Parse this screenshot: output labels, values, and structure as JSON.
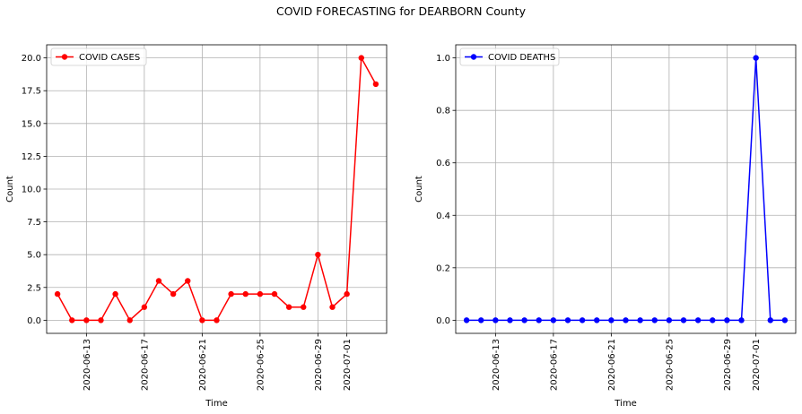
{
  "figure": {
    "suptitle": "COVID FORECASTING for DEARBORN County"
  },
  "chart_data": [
    {
      "type": "line",
      "xlabel": "Time",
      "ylabel": "Count",
      "x": [
        "2020-06-11",
        "2020-06-12",
        "2020-06-13",
        "2020-06-14",
        "2020-06-15",
        "2020-06-16",
        "2020-06-17",
        "2020-06-18",
        "2020-06-19",
        "2020-06-20",
        "2020-06-21",
        "2020-06-22",
        "2020-06-23",
        "2020-06-24",
        "2020-06-25",
        "2020-06-26",
        "2020-06-27",
        "2020-06-28",
        "2020-06-29",
        "2020-06-30",
        "2020-07-01",
        "2020-07-02",
        "2020-07-03"
      ],
      "series": [
        {
          "name": "COVID CASES",
          "color": "#ff0000",
          "marker": "circle",
          "values": [
            2,
            0,
            0,
            0,
            2,
            0,
            1,
            3,
            2,
            3,
            0,
            0,
            2,
            2,
            2,
            2,
            1,
            1,
            5,
            1,
            2,
            20,
            18
          ]
        }
      ],
      "xticks": [
        "2020-06-13",
        "2020-06-17",
        "2020-06-21",
        "2020-06-25",
        "2020-06-29",
        "2020-07-01"
      ],
      "yticks": [
        0.0,
        2.5,
        5.0,
        7.5,
        10.0,
        12.5,
        15.0,
        17.5,
        20.0
      ],
      "ytick_labels": [
        "0.0",
        "2.5",
        "5.0",
        "7.5",
        "10.0",
        "12.5",
        "15.0",
        "17.5",
        "20.0"
      ],
      "xlim": [
        "2020-06-10T06:00",
        "2020-07-03T18:00"
      ],
      "ylim": [
        -1.0,
        21.0
      ],
      "grid": true,
      "legend": "upper-left"
    },
    {
      "type": "line",
      "xlabel": "Time",
      "ylabel": "Count",
      "x": [
        "2020-06-11",
        "2020-06-12",
        "2020-06-13",
        "2020-06-14",
        "2020-06-15",
        "2020-06-16",
        "2020-06-17",
        "2020-06-18",
        "2020-06-19",
        "2020-06-20",
        "2020-06-21",
        "2020-06-22",
        "2020-06-23",
        "2020-06-24",
        "2020-06-25",
        "2020-06-26",
        "2020-06-27",
        "2020-06-28",
        "2020-06-29",
        "2020-06-30",
        "2020-07-01",
        "2020-07-02",
        "2020-07-03"
      ],
      "series": [
        {
          "name": "COVID DEATHS",
          "color": "#0000ff",
          "marker": "circle",
          "values": [
            0,
            0,
            0,
            0,
            0,
            0,
            0,
            0,
            0,
            0,
            0,
            0,
            0,
            0,
            0,
            0,
            0,
            0,
            0,
            0,
            1,
            0,
            0
          ]
        }
      ],
      "xticks": [
        "2020-06-13",
        "2020-06-17",
        "2020-06-21",
        "2020-06-25",
        "2020-06-29",
        "2020-07-01"
      ],
      "yticks": [
        0.0,
        0.2,
        0.4,
        0.6,
        0.8,
        1.0
      ],
      "ytick_labels": [
        "0.0",
        "0.2",
        "0.4",
        "0.6",
        "0.8",
        "1.0"
      ],
      "xlim": [
        "2020-06-10T06:00",
        "2020-07-03T18:00"
      ],
      "ylim": [
        -0.05,
        1.05
      ],
      "grid": true,
      "legend": "upper-left"
    }
  ]
}
